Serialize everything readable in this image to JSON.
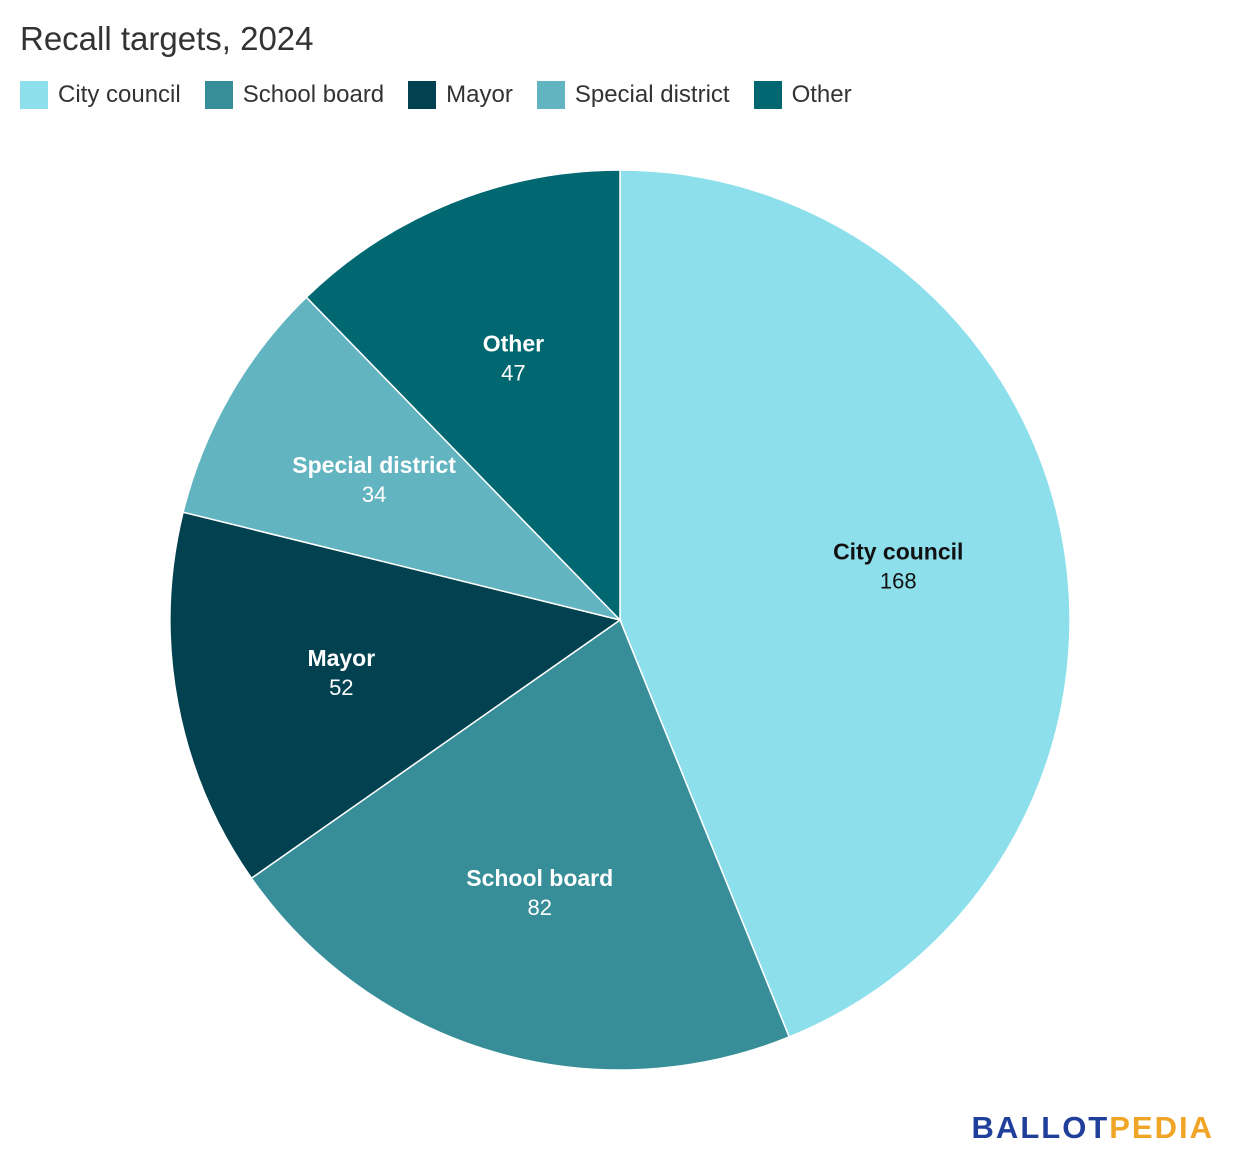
{
  "chart_data": {
    "type": "pie",
    "title": "Recall targets, 2024",
    "categories": [
      "City council",
      "School board",
      "Mayor",
      "Special district",
      "Other"
    ],
    "values": [
      168,
      82,
      52,
      34,
      47
    ],
    "colors": [
      "#8ddfec",
      "#378e98",
      "#024150",
      "#63b4c1",
      "#016872"
    ],
    "label_colors": [
      "#111111",
      "#ffffff",
      "#ffffff",
      "#ffffff",
      "#ffffff"
    ],
    "legend_position": "top-left",
    "start_angle": "12 o'clock, clockwise"
  },
  "branding": {
    "logo_part1": "BALLOT",
    "logo_part2": "PEDIA",
    "logo_color1": "#1f3f9a",
    "logo_color2": "#f0a526"
  }
}
